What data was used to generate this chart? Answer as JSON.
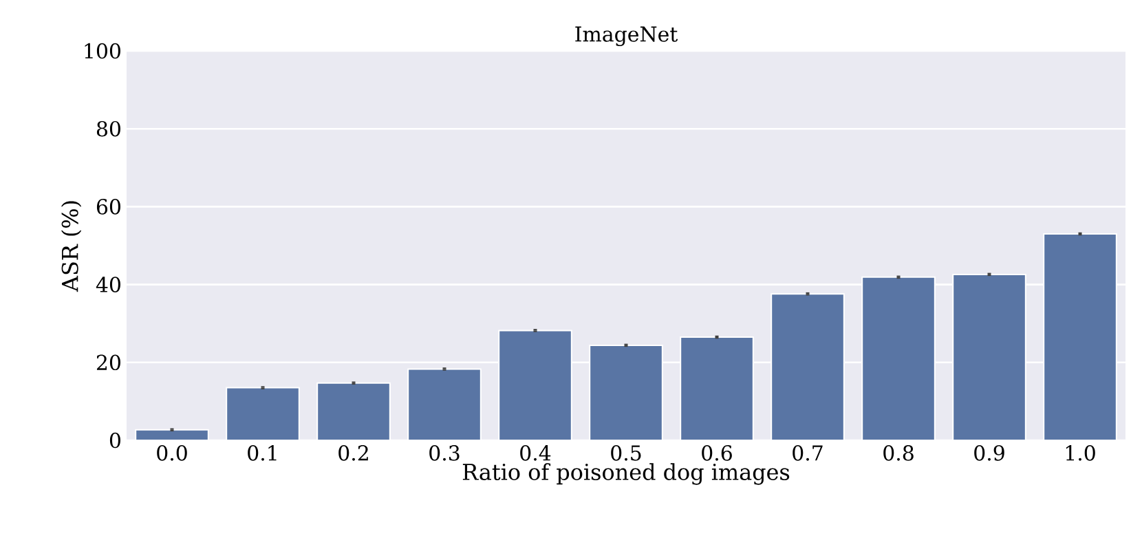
{
  "chart_data": {
    "type": "bar",
    "title": "ImageNet",
    "xlabel": "Ratio of poisoned dog images",
    "ylabel": "ASR (%)",
    "categories": [
      "0.0",
      "0.1",
      "0.2",
      "0.3",
      "0.4",
      "0.5",
      "0.6",
      "0.7",
      "0.8",
      "0.9",
      "1.0"
    ],
    "values": [
      2.7,
      13.5,
      14.7,
      18.3,
      28.2,
      24.4,
      26.5,
      37.6,
      41.9,
      42.6,
      53.0
    ],
    "errors": [
      0.4,
      0.4,
      0.4,
      0.4,
      0.4,
      0.4,
      0.4,
      0.4,
      0.4,
      0.4,
      0.4
    ],
    "color": "#5975a4",
    "ylim": [
      0,
      100
    ],
    "yticks": [
      0,
      20,
      40,
      60,
      80,
      100
    ],
    "grid": "y"
  }
}
